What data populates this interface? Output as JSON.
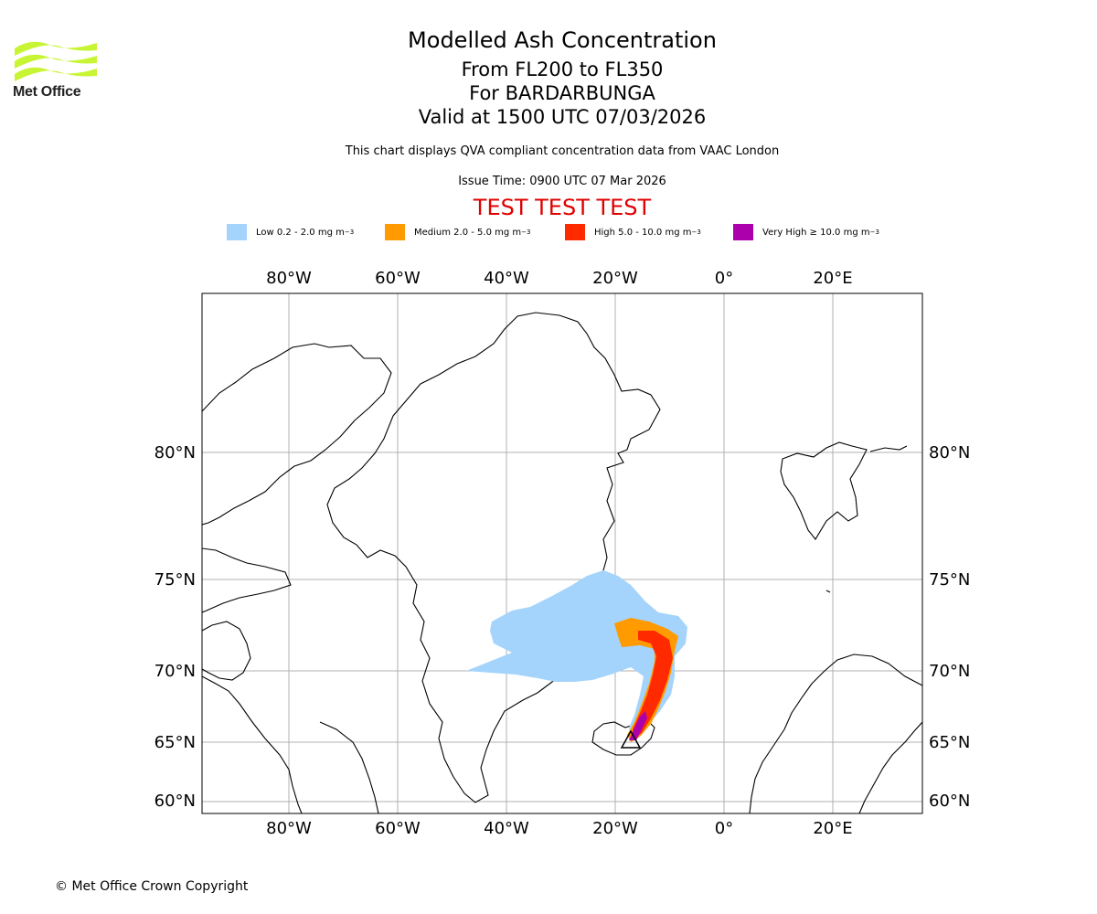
{
  "logo": {
    "text": "Met Office",
    "color": "#c8f533"
  },
  "title": "Modelled Ash Concentration",
  "levels": "From FL200 to FL350",
  "volcano": "For BARDARBUNGA",
  "valid": "Valid at 1500 UTC 07/03/2026",
  "note": "This chart displays QVA compliant concentration data from VAAC London",
  "issue": "Issue Time: 0900 UTC 07 Mar 2026",
  "test_banner": "TEST TEST TEST",
  "legend": [
    {
      "label": "Low 0.2 - 2.0 mg m",
      "sup": "−3",
      "color": "#a4d4fb"
    },
    {
      "label": "Medium 2.0 - 5.0 mg m",
      "sup": "−3",
      "color": "#ff9a00"
    },
    {
      "label": "High 5.0 - 10.0 mg m",
      "sup": "−3",
      "color": "#ff2a00"
    },
    {
      "label": "Very High ≥ 10.0 mg m",
      "sup": "−3",
      "color": "#ad00ad"
    }
  ],
  "axes": {
    "lon_labels": [
      "80°W",
      "60°W",
      "40°W",
      "20°W",
      "0°",
      "20°E"
    ],
    "lat_labels": [
      "80°N",
      "75°N",
      "70°N",
      "65°N",
      "60°N"
    ]
  },
  "copyright": "© Met Office Crown Copyright"
}
